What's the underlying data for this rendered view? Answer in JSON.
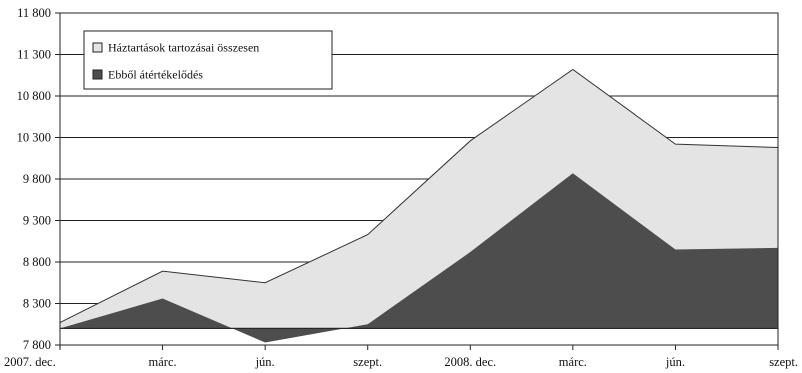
{
  "chart_data": {
    "type": "area",
    "title": "",
    "xlabel": "",
    "ylabel": "",
    "categories": [
      "2007. dec.",
      "márc.",
      "jún.",
      "szept.",
      "2008. dec.",
      "márc.",
      "jún.",
      "szept."
    ],
    "y_ticks": [
      "11 800",
      "11 300",
      "10 800",
      "10 300",
      "9 800",
      "9 300",
      "8 800",
      "8 300",
      "7 800"
    ],
    "ylim": [
      7800,
      11800
    ],
    "baseline": 8000,
    "grid": true,
    "legend_position": "top-left",
    "series": [
      {
        "name": "Háztartások tartozásai összesen",
        "color": "#e4e4e4",
        "values": [
          8070,
          8690,
          8550,
          9130,
          10260,
          11120,
          10220,
          10180
        ]
      },
      {
        "name": "Ebből átértékelődés",
        "color": "#4d4d4d",
        "values": [
          8000,
          8360,
          7830,
          8050,
          8920,
          9870,
          8950,
          8970
        ]
      }
    ]
  }
}
